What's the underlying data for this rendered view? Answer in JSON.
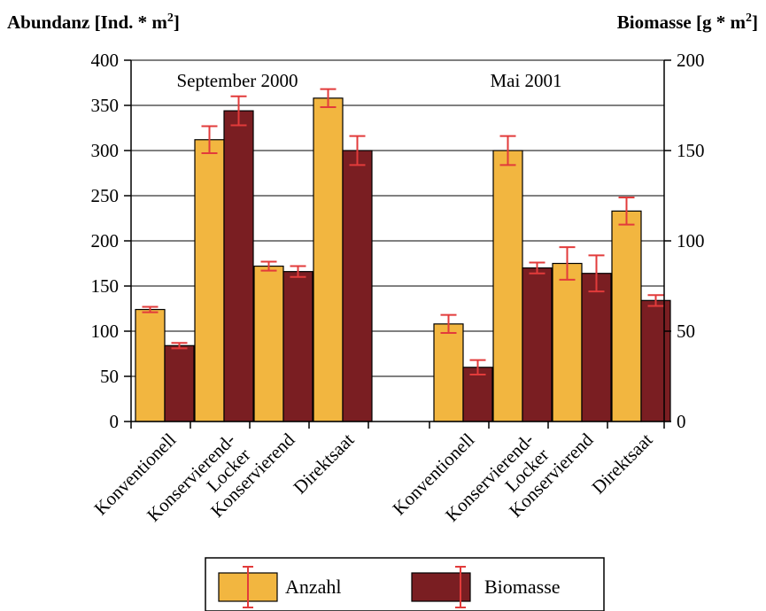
{
  "chart_data": {
    "type": "bar",
    "left_axis_title_main": "Abundanz [Ind. * m",
    "left_axis_title_sup": "2",
    "left_axis_title_end": "]",
    "right_axis_title_main": "Biomasse [g * m",
    "right_axis_title_sup": "2",
    "right_axis_title_end": "]",
    "left_ylim": [
      0,
      400
    ],
    "left_ticks": [
      "0",
      "50",
      "100",
      "150",
      "200",
      "250",
      "300",
      "350",
      "400"
    ],
    "right_ylim": [
      0,
      200
    ],
    "right_ticks": [
      "0",
      "50",
      "100",
      "150",
      "200"
    ],
    "grid": true,
    "legend_position": "bottom",
    "colors": {
      "anzahl": "#f2b640",
      "biomasse": "#7a1e22",
      "error": "#e23b3b"
    },
    "groups": [
      {
        "label": "September 2000",
        "categories": [
          {
            "lines": [
              "Konventionell"
            ],
            "anzahl": 124,
            "anzahl_err": 3,
            "biomasse": 42,
            "biomasse_err": 1.5
          },
          {
            "lines": [
              "Konservierend-",
              "Locker"
            ],
            "anzahl": 312,
            "anzahl_err": 15,
            "biomasse": 172,
            "biomasse_err": 8
          },
          {
            "lines": [
              "Konservierend"
            ],
            "anzahl": 172,
            "anzahl_err": 5,
            "biomasse": 83,
            "biomasse_err": 3
          },
          {
            "lines": [
              "Direktsaat"
            ],
            "anzahl": 358,
            "anzahl_err": 10,
            "biomasse": 150,
            "biomasse_err": 8
          }
        ]
      },
      {
        "label": "Mai 2001",
        "categories": [
          {
            "lines": [
              "Konventionell"
            ],
            "anzahl": 108,
            "anzahl_err": 10,
            "biomasse": 30,
            "biomasse_err": 4
          },
          {
            "lines": [
              "Konservierend-",
              "Locker"
            ],
            "anzahl": 300,
            "anzahl_err": 16,
            "biomasse": 85,
            "biomasse_err": 3
          },
          {
            "lines": [
              "Konservierend"
            ],
            "anzahl": 175,
            "anzahl_err": 18,
            "biomasse": 82,
            "biomasse_err": 10
          },
          {
            "lines": [
              "Direktsaat"
            ],
            "anzahl": 233,
            "anzahl_err": 15,
            "biomasse": 67,
            "biomasse_err": 3
          }
        ]
      }
    ],
    "legend": [
      "Anzahl",
      "Biomasse"
    ]
  }
}
